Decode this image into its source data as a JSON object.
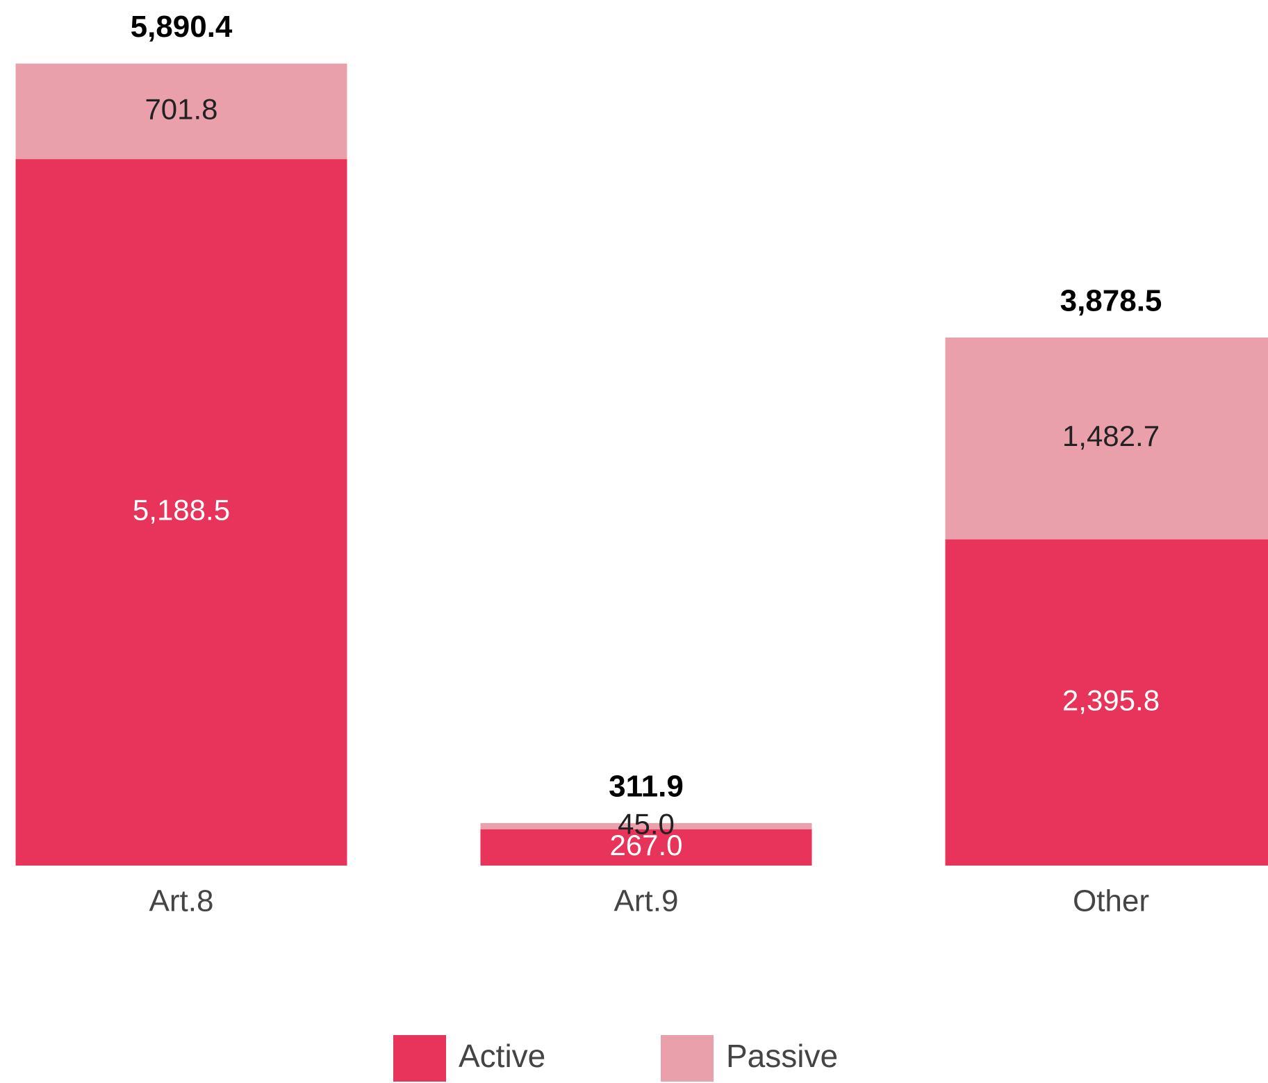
{
  "chart_data": {
    "type": "stacked_bar",
    "categories": [
      "Art.8",
      "Art.9",
      "Other"
    ],
    "series": [
      {
        "name": "Active",
        "color": "#e8345a",
        "values": [
          5188.5,
          267.0,
          2395.8
        ],
        "value_labels": [
          "5,188.5",
          "267.0",
          "2,395.8"
        ]
      },
      {
        "name": "Passive",
        "color": "#eaa0aa",
        "values": [
          701.8,
          45.0,
          1482.7
        ],
        "value_labels": [
          "701.8",
          "45.0",
          "1,482.7"
        ]
      }
    ],
    "totals": [
      5890.4,
      311.9,
      3878.5
    ],
    "total_labels": [
      "5,890.4",
      "311.9",
      "3,878.5"
    ],
    "ylim": [
      0,
      6000
    ],
    "legend": "bottom"
  }
}
